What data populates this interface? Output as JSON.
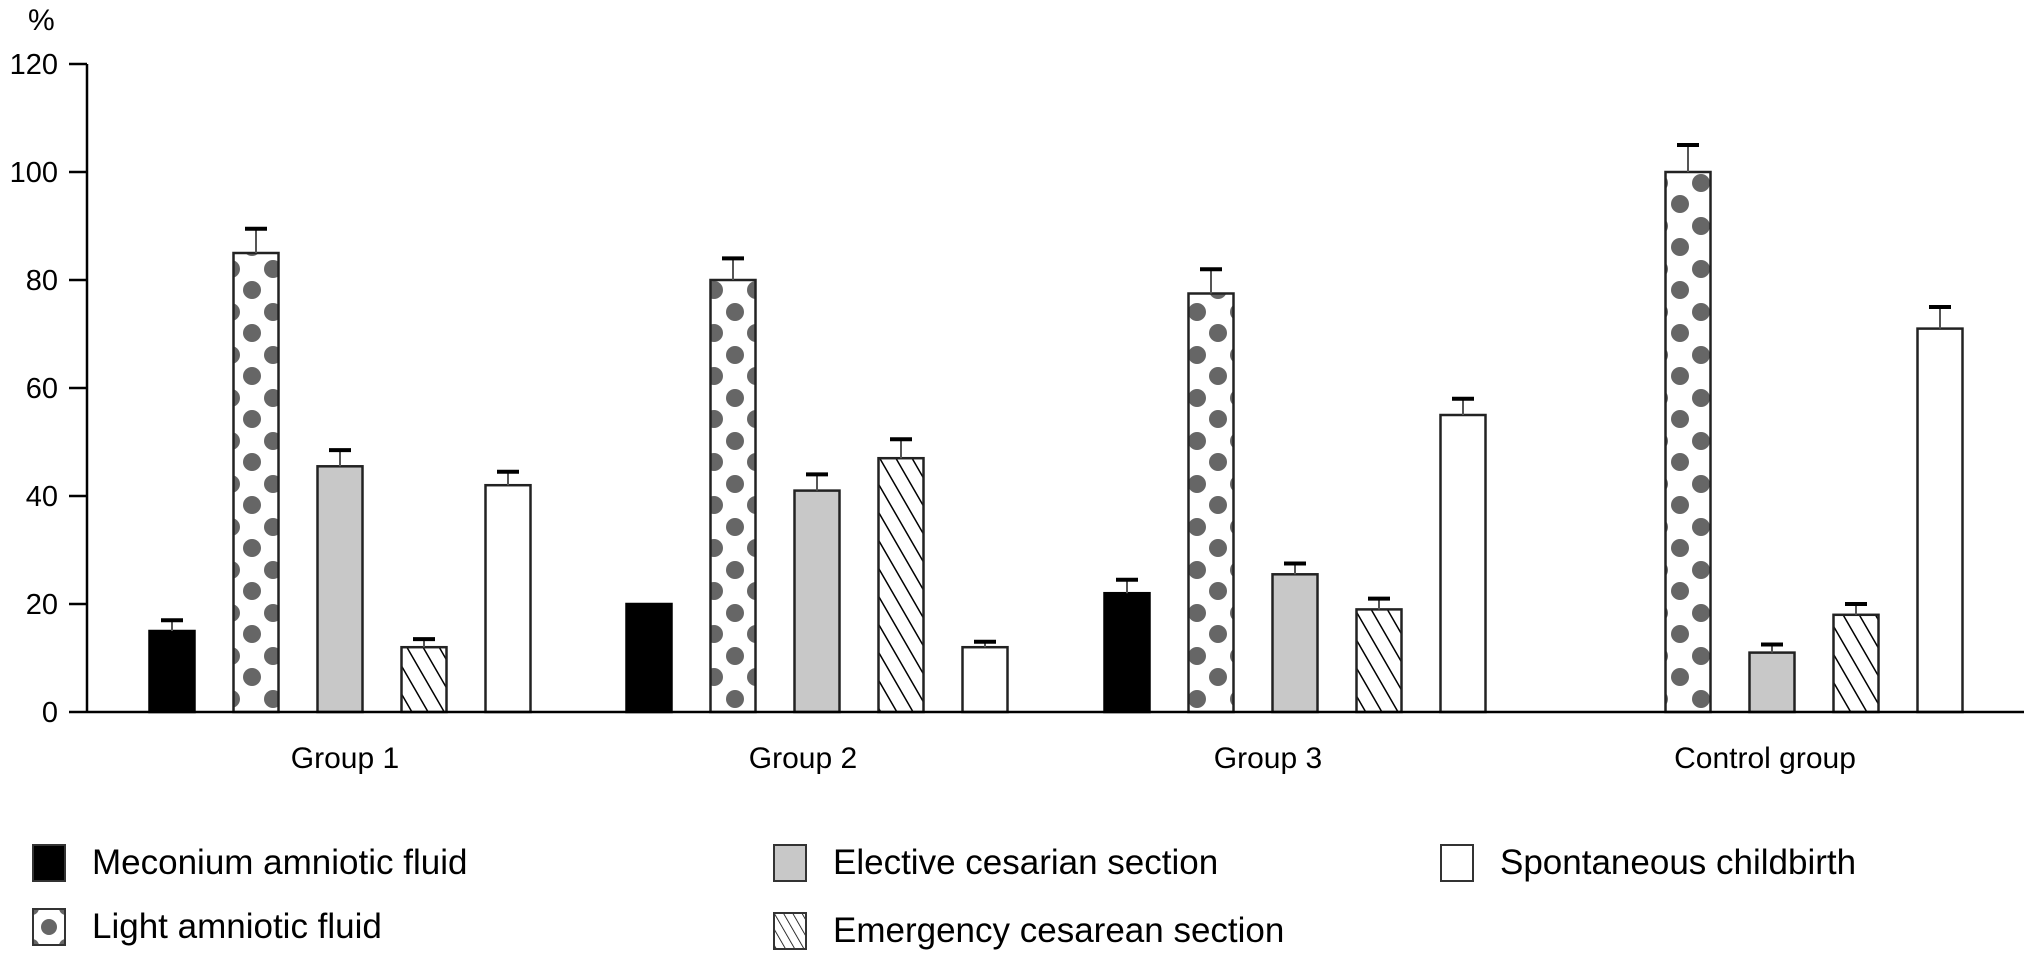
{
  "chart_data": {
    "type": "bar",
    "title": "",
    "xlabel": "",
    "ylabel": "%",
    "ylim": [
      0,
      120
    ],
    "yticks": [
      0,
      20,
      40,
      60,
      80,
      100,
      120
    ],
    "grid": false,
    "legend_position": "bottom",
    "categories": [
      "Group 1",
      "Group 2",
      "Group 3",
      "Control group"
    ],
    "series": [
      {
        "name": "Meconium amniotic fluid",
        "pattern": "solid",
        "color": "#000000",
        "values": [
          15,
          20,
          22,
          0
        ],
        "error_upper": [
          17,
          null,
          24.5,
          null
        ]
      },
      {
        "name": "Light amniotic fluid",
        "pattern": "dots",
        "color": "#666666",
        "values": [
          85,
          80,
          77.5,
          100
        ],
        "error_upper": [
          89.5,
          84,
          82,
          105
        ]
      },
      {
        "name": "Elective cesarian section",
        "pattern": "solid",
        "color": "#c8c8c8",
        "values": [
          45.5,
          41,
          25.5,
          11
        ],
        "error_upper": [
          48.5,
          44,
          27.5,
          12.5
        ]
      },
      {
        "name": "Emergency cesarean section",
        "pattern": "hatch",
        "color": "#000000",
        "values": [
          12,
          47,
          19,
          18
        ],
        "error_upper": [
          13.5,
          50.5,
          21,
          20
        ]
      },
      {
        "name": "Spontaneous childbirth",
        "pattern": "solid",
        "color": "#ffffff",
        "values": [
          42,
          12,
          55,
          71
        ],
        "error_upper": [
          44.5,
          13,
          58,
          75
        ]
      }
    ]
  }
}
